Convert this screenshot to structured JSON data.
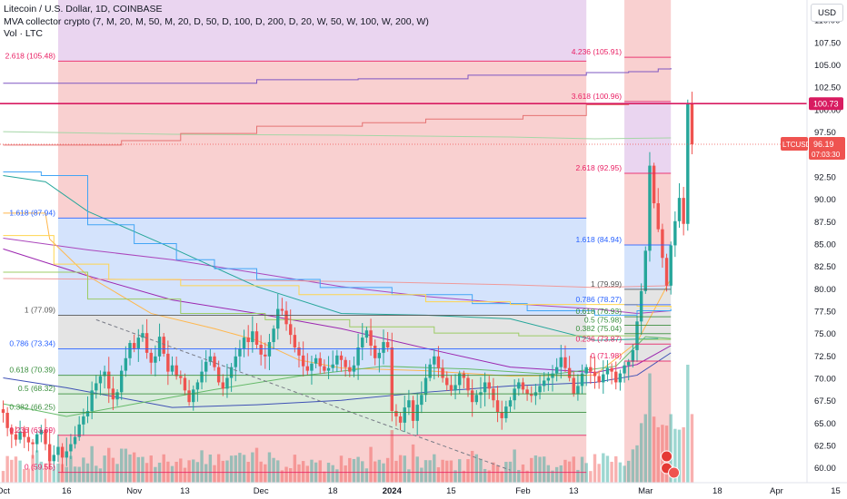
{
  "header": {
    "title": "Litecoin / U.S. Dollar, 1D, COINBASE",
    "indicator": "MVA collector crypto (7, M, 20, M, 50, M, 20, D, 50, D, 100, D, 200, D, 20, W, 50, W, 100, W, 200, W)",
    "volume": "Vol · LTC"
  },
  "currency": "USD",
  "last_price": {
    "symbol": "LTCUSD",
    "price": "96.19",
    "countdown": "07:03:30"
  },
  "line_label": "100.73",
  "colors": {
    "up": "#26a69a",
    "down": "#ef5350",
    "hline": "#d81b60",
    "red_zone": "#f9d0d0",
    "blue_zone": "#d4e3fc",
    "purple_zone": "#ead5f0",
    "gray_zone": "#e4e4e4",
    "green_zone": "#d9ecdc"
  },
  "chart_data": {
    "type": "candlestick",
    "title": "Litecoin / U.S. Dollar, 1D, COINBASE",
    "xlabel": "",
    "ylabel": "",
    "y_ticks": [
      "60.00",
      "62.50",
      "65.00",
      "67.50",
      "70.00",
      "72.50",
      "75.00",
      "77.50",
      "80.00",
      "82.50",
      "85.00",
      "87.50",
      "90.00",
      "92.50",
      "95.00",
      "97.50",
      "100.00",
      "102.50",
      "105.00",
      "107.50",
      "110.00"
    ],
    "ylim": [
      58.4,
      112.3
    ],
    "x_ticks": [
      {
        "label": "Oct",
        "day": 0
      },
      {
        "label": "16",
        "day": 15
      },
      {
        "label": "Nov",
        "day": 31
      },
      {
        "label": "13",
        "day": 43
      },
      {
        "label": "Dec",
        "day": 61
      },
      {
        "label": "18",
        "day": 78
      },
      {
        "label": "2024",
        "day": 92,
        "bold": true
      },
      {
        "label": "15",
        "day": 106
      },
      {
        "label": "Feb",
        "day": 123
      },
      {
        "label": "13",
        "day": 135
      },
      {
        "label": "Mar",
        "day": 152
      },
      {
        "label": "18",
        "day": 169
      },
      {
        "label": "Apr",
        "day": 183
      },
      {
        "label": "15",
        "day": 197
      }
    ],
    "horizontal_line": 100.73,
    "fib_left": {
      "start_day": 13,
      "end_day": 138,
      "levels": [
        {
          "label": "2.618 (105.48)",
          "value": 105.48
        },
        {
          "label": "1.618 (87.94)",
          "value": 87.94
        },
        {
          "label": "1 (77.09)",
          "value": 77.09
        },
        {
          "label": "0.786 (73.34)",
          "value": 73.34
        },
        {
          "label": "0.618 (70.39)",
          "value": 70.39
        },
        {
          "label": "0.5 (68.32)",
          "value": 68.32
        },
        {
          "label": "0.382 (66.25)",
          "value": 66.25
        },
        {
          "label": "0.236 (63.69)",
          "value": 63.69
        },
        {
          "label": "0 (59.55)",
          "value": 59.55
        }
      ]
    },
    "fib_right": {
      "start_day": 147,
      "end_day": 158,
      "levels": [
        {
          "label": "4.236 (105.91)",
          "value": 105.91
        },
        {
          "label": "3.618 (100.96)",
          "value": 100.96
        },
        {
          "label": "2.618 (92.95)",
          "value": 92.95
        },
        {
          "label": "1.618 (84.94)",
          "value": 84.94
        },
        {
          "label": "1 (79.99)",
          "value": 79.99
        },
        {
          "label": "0.786 (78.27)",
          "value": 78.27
        },
        {
          "label": "0.618 (76.93)",
          "value": 76.93
        },
        {
          "label": "0.5 (75.98)",
          "value": 75.98
        },
        {
          "label": "0.382 (75.04)",
          "value": 75.04
        },
        {
          "label": "0.236 (73.87)",
          "value": 73.87
        },
        {
          "label": "0 (71.98)",
          "value": 71.98
        }
      ]
    },
    "closes": [
      66.2,
      64.5,
      63.8,
      63.2,
      64.1,
      63.5,
      62.9,
      62.7,
      63.8,
      64.3,
      62.7,
      60.8,
      61.5,
      62.4,
      61.2,
      61.9,
      62.7,
      63.5,
      64.9,
      65.8,
      66.4,
      68.7,
      69.5,
      70.3,
      70.8,
      68.9,
      67.7,
      68.5,
      70.9,
      72.3,
      74.0,
      73.4,
      74.6,
      75.1,
      72.9,
      71.8,
      72.5,
      74.7,
      72.8,
      70.8,
      71.5,
      70.3,
      70.1,
      68.7,
      67.4,
      68.8,
      69.6,
      70.8,
      71.9,
      72.5,
      71.3,
      69.6,
      68.9,
      70.1,
      71.3,
      72.5,
      73.4,
      74.6,
      74.1,
      75.3,
      73.8,
      72.7,
      72.5,
      74.1,
      75.6,
      77.8,
      77.6,
      76.1,
      74.9,
      73.5,
      72.6,
      71.4,
      70.9,
      71.7,
      72.3,
      71.4,
      70.9,
      71.2,
      71.6,
      72.6,
      72.1,
      71.3,
      70.8,
      71.5,
      73.5,
      74.6,
      75.4,
      73.7,
      72.3,
      72.9,
      74.1,
      73.5,
      66.4,
      65.8,
      65.1,
      66.8,
      67.6,
      65.3,
      67.1,
      68.2,
      70.1,
      71.6,
      72.5,
      71.2,
      70.1,
      69.3,
      68.7,
      69.3,
      70.6,
      70.1,
      68.7,
      67.4,
      68.2,
      68.5,
      69.6,
      68.9,
      67.6,
      66.3,
      65.6,
      66.9,
      67.6,
      68.9,
      69.6,
      68.8,
      68.3,
      68.1,
      68.5,
      69.2,
      69.8,
      70.1,
      70.6,
      71.3,
      72.4,
      71.2,
      70.1,
      68.3,
      69.2,
      70.6,
      71.3,
      70.8,
      70.3,
      69.6,
      70.5,
      71.2,
      70.8,
      69.6,
      70.6,
      71.5,
      71.9,
      73.2,
      76.4,
      79.8,
      84.3,
      93.8,
      89.6,
      86.7,
      83.5,
      80.4,
      84.9,
      87.6,
      90.2,
      87.3,
      100.7,
      96.19
    ],
    "moving_averages": [
      {
        "color": "#3f51b5",
        "points": [
          [
            0,
            70.1
          ],
          [
            15,
            69.0
          ],
          [
            40,
            66.8
          ],
          [
            60,
            67.1
          ],
          [
            80,
            67.6
          ],
          [
            100,
            68.5
          ],
          [
            120,
            69.2
          ],
          [
            140,
            69.6
          ],
          [
            150,
            70.4
          ],
          [
            158,
            72.9
          ]
        ]
      },
      {
        "color": "#9c27b0",
        "points": [
          [
            0,
            84.5
          ],
          [
            20,
            81.5
          ],
          [
            40,
            78.8
          ],
          [
            60,
            77.3
          ],
          [
            80,
            75.6
          ],
          [
            100,
            73.4
          ],
          [
            120,
            71.3
          ],
          [
            140,
            70.7
          ],
          [
            150,
            71.6
          ],
          [
            158,
            73.7
          ]
        ]
      },
      {
        "color": "#ab47bc",
        "points": [
          [
            0,
            85.7
          ],
          [
            20,
            84.4
          ],
          [
            40,
            83.3
          ],
          [
            60,
            81.8
          ],
          [
            80,
            80.3
          ],
          [
            100,
            79.2
          ],
          [
            120,
            78.4
          ],
          [
            140,
            77.8
          ],
          [
            150,
            77.3
          ],
          [
            158,
            77.6
          ]
        ]
      },
      {
        "color": "#ffb74d",
        "points": [
          [
            0,
            88.5
          ],
          [
            10,
            88.5
          ],
          [
            11,
            85.6
          ],
          [
            20,
            81.5
          ],
          [
            35,
            77.3
          ],
          [
            50,
            75.6
          ],
          [
            60,
            74.3
          ],
          [
            70,
            72.1
          ],
          [
            80,
            71.2
          ],
          [
            100,
            70.9
          ],
          [
            120,
            70.3
          ],
          [
            140,
            70.4
          ],
          [
            150,
            74.1
          ],
          [
            158,
            81.2
          ]
        ]
      },
      {
        "color": "#66bb6a",
        "points": [
          [
            0,
            67.2
          ],
          [
            15,
            65.8
          ],
          [
            30,
            67.1
          ],
          [
            50,
            68.8
          ],
          [
            70,
            70.3
          ],
          [
            90,
            71.4
          ],
          [
            110,
            71.1
          ],
          [
            130,
            70.5
          ],
          [
            145,
            71.4
          ],
          [
            152,
            74.7
          ],
          [
            158,
            74.5
          ]
        ]
      },
      {
        "color": "#ef9a9a",
        "points": [
          [
            0,
            81.2
          ],
          [
            30,
            81.1
          ],
          [
            60,
            81.0
          ],
          [
            90,
            80.8
          ],
          [
            120,
            80.5
          ],
          [
            140,
            80.2
          ],
          [
            158,
            80.4
          ]
        ]
      },
      {
        "color": "#a5d6a7",
        "points": [
          [
            0,
            97.6
          ],
          [
            40,
            97.3
          ],
          [
            80,
            97.2
          ],
          [
            120,
            97.0
          ],
          [
            140,
            96.8
          ],
          [
            158,
            96.9
          ]
        ]
      },
      {
        "color": "#26a69a",
        "points": [
          [
            0,
            92.7
          ],
          [
            10,
            92.0
          ],
          [
            20,
            88.7
          ],
          [
            40,
            84.6
          ],
          [
            60,
            80.3
          ],
          [
            80,
            77.3
          ],
          [
            100,
            77.1
          ],
          [
            120,
            76.7
          ],
          [
            140,
            74.3
          ],
          [
            155,
            74.5
          ]
        ]
      }
    ],
    "stepped_lines": [
      {
        "color": "#e57373",
        "points": [
          [
            0,
            96.1
          ],
          [
            28,
            96.6
          ],
          [
            42,
            97.4
          ],
          [
            60,
            98.2
          ],
          [
            85,
            98.6
          ],
          [
            100,
            99.0
          ],
          [
            123,
            99.4
          ],
          [
            138,
            100.6
          ],
          [
            148,
            100.7
          ],
          [
            158,
            100.7
          ]
        ]
      },
      {
        "color": "#7e57c2",
        "points": [
          [
            0,
            103.0
          ],
          [
            42,
            103.0
          ],
          [
            60,
            103.4
          ],
          [
            84,
            103.5
          ],
          [
            110,
            103.9
          ],
          [
            138,
            104.2
          ],
          [
            148,
            104.3
          ],
          [
            155,
            104.6
          ],
          [
            158,
            104.7
          ]
        ]
      },
      {
        "color": "#42a5f5",
        "points": [
          [
            0,
            93.1
          ],
          [
            9,
            92.7
          ],
          [
            20,
            87.2
          ],
          [
            31,
            85.1
          ],
          [
            41,
            83.3
          ],
          [
            50,
            82.3
          ],
          [
            60,
            81.1
          ],
          [
            75,
            80.2
          ],
          [
            92,
            79.4
          ],
          [
            111,
            78.4
          ],
          [
            124,
            77.6
          ],
          [
            140,
            77.1
          ],
          [
            150,
            77.6
          ],
          [
            158,
            77.8
          ]
        ]
      },
      {
        "color": "#ffd54f",
        "points": [
          [
            0,
            86.0
          ],
          [
            11,
            86.0
          ],
          [
            12,
            82.8
          ],
          [
            25,
            81.1
          ],
          [
            42,
            80.4
          ],
          [
            70,
            79.4
          ],
          [
            100,
            78.6
          ],
          [
            120,
            78.3
          ],
          [
            150,
            78.1
          ],
          [
            158,
            77.9
          ]
        ]
      },
      {
        "color": "#9ccc65",
        "points": [
          [
            0,
            81.9
          ],
          [
            20,
            78.9
          ],
          [
            42,
            77.3
          ],
          [
            62,
            76.6
          ],
          [
            82,
            75.8
          ],
          [
            102,
            75.1
          ],
          [
            122,
            74.8
          ],
          [
            150,
            74.4
          ],
          [
            158,
            74.4
          ]
        ]
      }
    ],
    "volume_scale_note": "relative"
  }
}
